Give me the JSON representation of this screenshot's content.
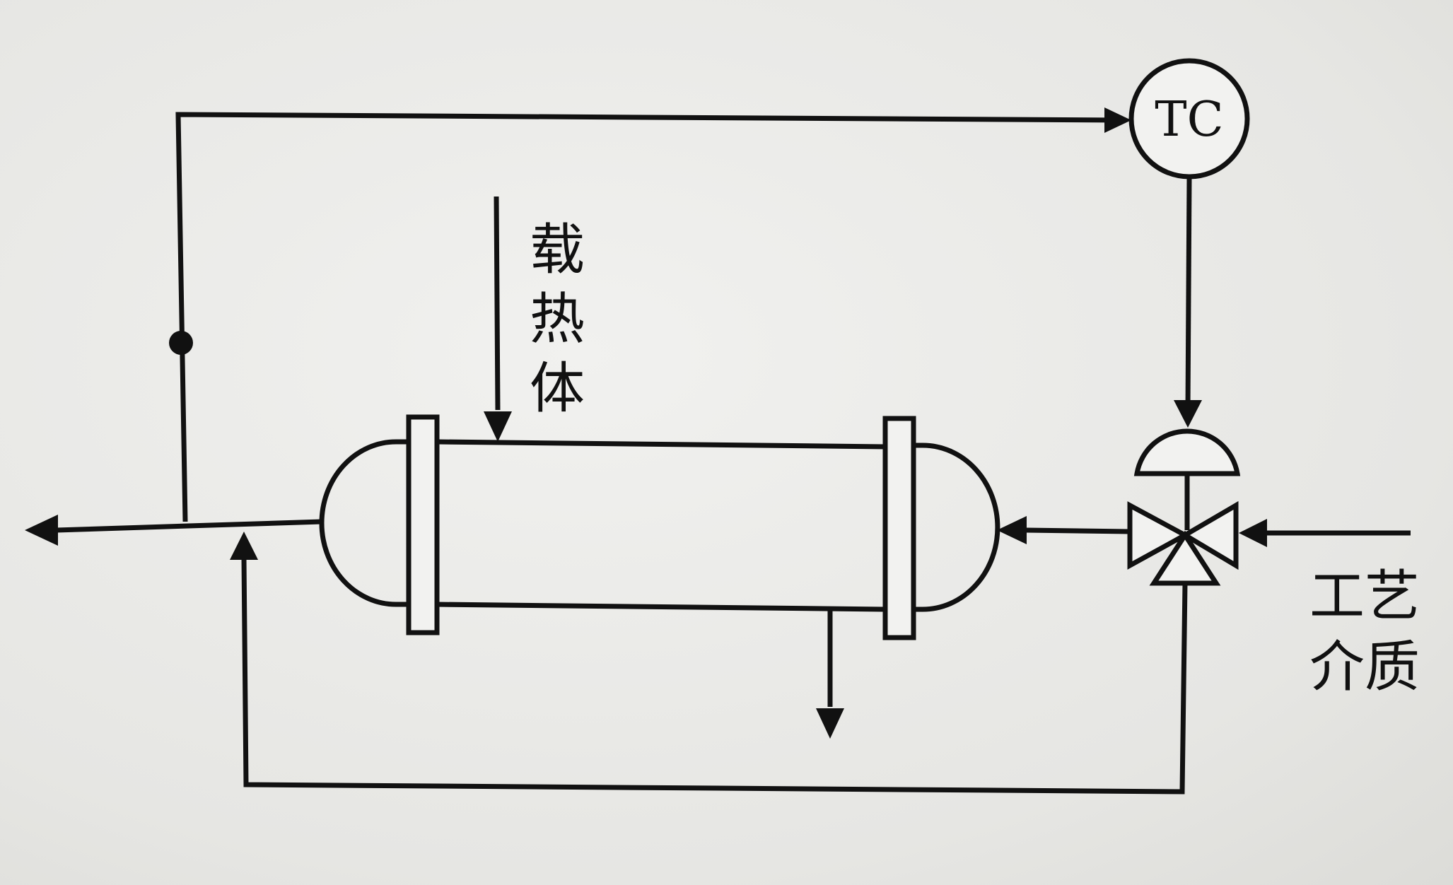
{
  "diagram": {
    "controller_label": "TC",
    "heating_medium_label": [
      "载",
      "热",
      "体"
    ],
    "process_medium_label": [
      "工艺",
      "介质"
    ],
    "colors": {
      "ink": "#111111",
      "paper": "#ededea"
    }
  }
}
